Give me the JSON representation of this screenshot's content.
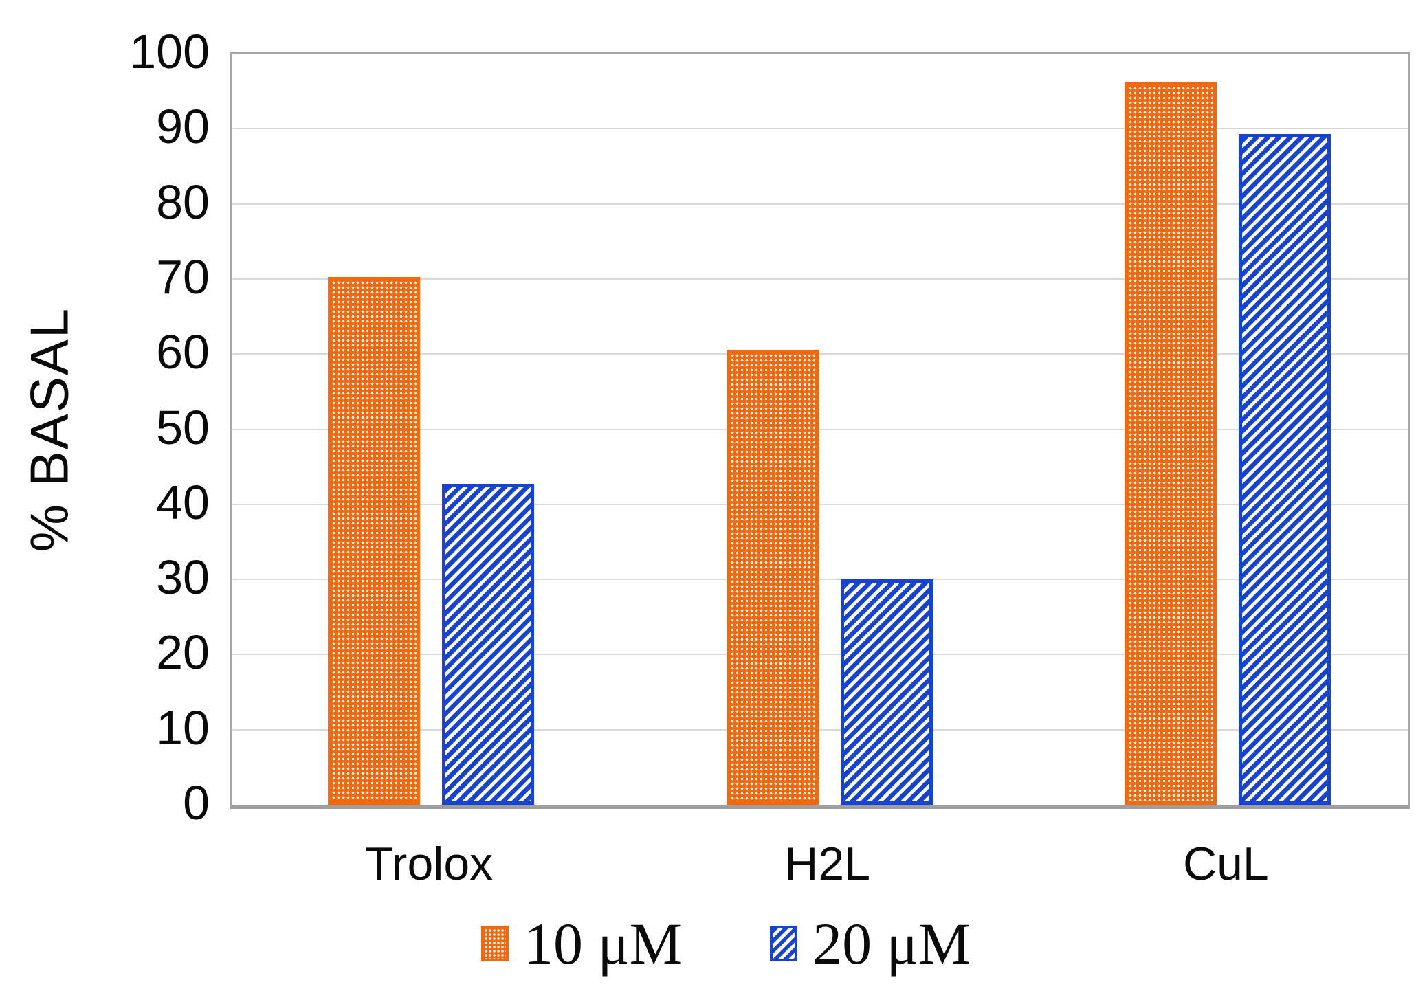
{
  "chart_data": {
    "type": "bar",
    "title": "",
    "xlabel": "",
    "ylabel": "% BASAL",
    "ylim": [
      0,
      100
    ],
    "grid": true,
    "legend_position": "bottom",
    "y_ticks": [
      100,
      90,
      80,
      70,
      60,
      50,
      40,
      30,
      20,
      10,
      0
    ],
    "categories": [
      "Trolox",
      "H2L",
      "CuL"
    ],
    "series": [
      {
        "name": "10 μM",
        "pattern": "dots",
        "color": "#f2680e",
        "values": [
          70.3,
          60.6,
          96.2
        ]
      },
      {
        "name": "20 μM",
        "pattern": "stripes",
        "color": "#1743d3",
        "values": [
          42.7,
          30.0,
          89.3
        ]
      }
    ]
  },
  "colors": {
    "bar_orange": "#f2680e",
    "bar_blue": "#1743d3",
    "gridline": "#d9d9d9",
    "plot_border": "#a6a6a6",
    "text": "#0a0a0a",
    "background": "#ffffff"
  }
}
